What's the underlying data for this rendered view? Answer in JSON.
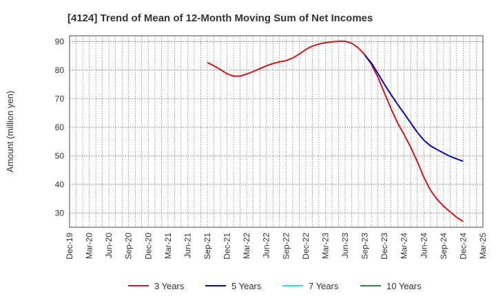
{
  "chart_data": {
    "type": "line",
    "title": "[4124]  Trend of Mean of 12-Month Moving Sum of Net Incomes",
    "ylabel": "Amount (million yen)",
    "xlabel": "",
    "ylim": [
      25,
      92
    ],
    "yticks": [
      30,
      40,
      50,
      60,
      70,
      80,
      90
    ],
    "x_tick_labels": [
      "Dec-19",
      "Mar-20",
      "Jun-20",
      "Sep-20",
      "Dec-20",
      "Mar-21",
      "Jun-21",
      "Sep-21",
      "Dec-21",
      "Mar-22",
      "Jun-22",
      "Sep-22",
      "Dec-22",
      "Mar-23",
      "Jun-23",
      "Sep-23",
      "Dec-23",
      "Mar-24",
      "Jun-24",
      "Sep-24",
      "Dec-24",
      "Mar-25"
    ],
    "grid": true,
    "legend_position": "bottom",
    "series": [
      {
        "name": "3 Years",
        "color": "#dd1111",
        "points": [
          [
            "Sep-21",
            82.7
          ],
          [
            "Oct-21",
            81.5
          ],
          [
            "Nov-21",
            80.2
          ],
          [
            "Dec-21",
            78.7
          ],
          [
            "Jan-22",
            77.9
          ],
          [
            "Feb-22",
            77.9
          ],
          [
            "Mar-22",
            78.6
          ],
          [
            "Apr-22",
            79.5
          ],
          [
            "May-22",
            80.5
          ],
          [
            "Jun-22",
            81.5
          ],
          [
            "Jul-22",
            82.3
          ],
          [
            "Aug-22",
            82.9
          ],
          [
            "Sep-22",
            83.3
          ],
          [
            "Oct-22",
            84.2
          ],
          [
            "Nov-22",
            85.6
          ],
          [
            "Dec-22",
            87.2
          ],
          [
            "Jan-23",
            88.4
          ],
          [
            "Feb-23",
            89.1
          ],
          [
            "Mar-23",
            89.6
          ],
          [
            "Apr-23",
            89.9
          ],
          [
            "May-23",
            90.1
          ],
          [
            "Jun-23",
            90.1
          ],
          [
            "Jul-23",
            89.4
          ],
          [
            "Aug-23",
            87.8
          ],
          [
            "Sep-23",
            85.4
          ],
          [
            "Oct-23",
            82.0
          ],
          [
            "Nov-23",
            77.5
          ],
          [
            "Dec-23",
            72.0
          ],
          [
            "Jan-24",
            66.5
          ],
          [
            "Feb-24",
            61.5
          ],
          [
            "Mar-24",
            57.4
          ],
          [
            "Apr-24",
            53.0
          ],
          [
            "May-24",
            48.0
          ],
          [
            "Jun-24",
            42.5
          ],
          [
            "Jul-24",
            38.0
          ],
          [
            "Aug-24",
            34.8
          ],
          [
            "Sep-24",
            32.4
          ],
          [
            "Oct-24",
            30.4
          ],
          [
            "Nov-24",
            28.5
          ],
          [
            "Dec-24",
            27.0
          ]
        ]
      },
      {
        "name": "5 Years",
        "color": "#0000cc",
        "points": [
          [
            "Sep-23",
            85.2
          ],
          [
            "Oct-23",
            82.5
          ],
          [
            "Nov-23",
            78.8
          ],
          [
            "Dec-23",
            75.0
          ],
          [
            "Jan-24",
            71.4
          ],
          [
            "Feb-24",
            68.0
          ],
          [
            "Mar-24",
            64.8
          ],
          [
            "Apr-24",
            61.5
          ],
          [
            "May-24",
            58.2
          ],
          [
            "Jun-24",
            55.5
          ],
          [
            "Jul-24",
            53.5
          ],
          [
            "Aug-24",
            52.2
          ],
          [
            "Sep-24",
            51.0
          ],
          [
            "Oct-24",
            49.8
          ],
          [
            "Nov-24",
            48.9
          ],
          [
            "Dec-24",
            48.1
          ]
        ]
      },
      {
        "name": "7 Years",
        "color": "#00e5ee",
        "points": []
      },
      {
        "name": "10 Years",
        "color": "#228b22",
        "points": []
      }
    ]
  }
}
